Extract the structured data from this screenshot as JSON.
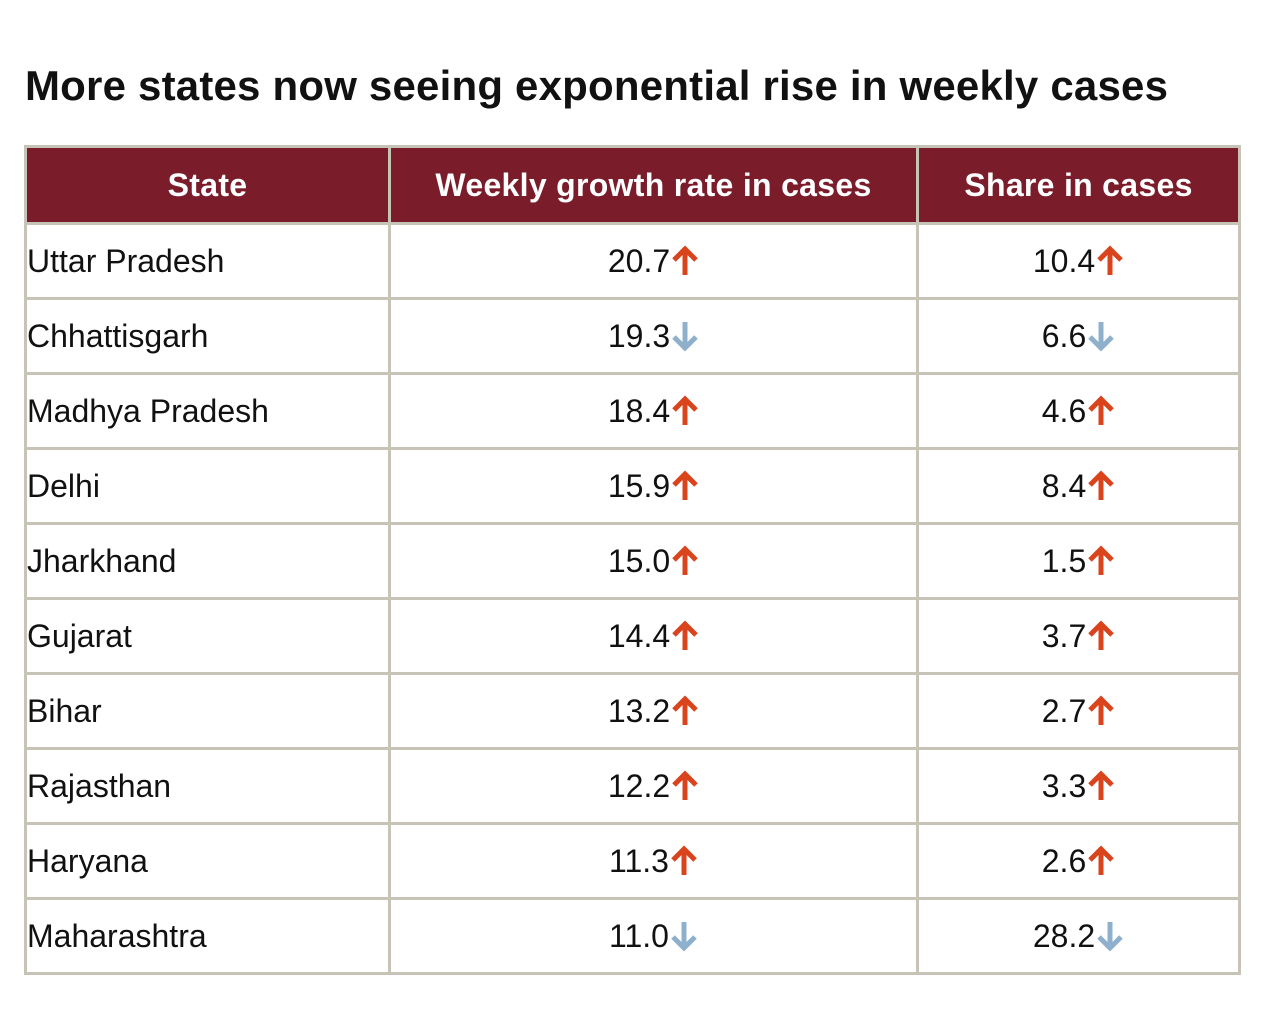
{
  "title": "More states now seeing exponential rise in weekly cases",
  "colors": {
    "header_bg": "#7b1c2a",
    "header_text": "#ffffff",
    "border": "#c7c3b6",
    "up_arrow": "#d9441c",
    "down_arrow": "#8fb0cc"
  },
  "chart_data": {
    "type": "table",
    "title": "More states now seeing exponential rise in weekly cases",
    "columns": [
      "State",
      "Weekly growth rate in cases",
      "Share in cases"
    ],
    "rows": [
      {
        "state": "Uttar Pradesh",
        "growth": "20.7",
        "growth_trend": "up",
        "share": "10.4",
        "share_trend": "up"
      },
      {
        "state": "Chhattisgarh",
        "growth": "19.3",
        "growth_trend": "down",
        "share": "6.6",
        "share_trend": "down"
      },
      {
        "state": "Madhya Pradesh",
        "growth": "18.4",
        "growth_trend": "up",
        "share": "4.6",
        "share_trend": "up"
      },
      {
        "state": "Delhi",
        "growth": "15.9",
        "growth_trend": "up",
        "share": "8.4",
        "share_trend": "up"
      },
      {
        "state": "Jharkhand",
        "growth": "15.0",
        "growth_trend": "up",
        "share": "1.5",
        "share_trend": "up"
      },
      {
        "state": "Gujarat",
        "growth": "14.4",
        "growth_trend": "up",
        "share": "3.7",
        "share_trend": "up"
      },
      {
        "state": "Bihar",
        "growth": "13.2",
        "growth_trend": "up",
        "share": "2.7",
        "share_trend": "up"
      },
      {
        "state": "Rajasthan",
        "growth": "12.2",
        "growth_trend": "up",
        "share": "3.3",
        "share_trend": "up"
      },
      {
        "state": "Haryana",
        "growth": "11.3",
        "growth_trend": "up",
        "share": "2.6",
        "share_trend": "up"
      },
      {
        "state": "Maharashtra",
        "growth": "11.0",
        "growth_trend": "down",
        "share": "28.2",
        "share_trend": "down"
      }
    ]
  }
}
